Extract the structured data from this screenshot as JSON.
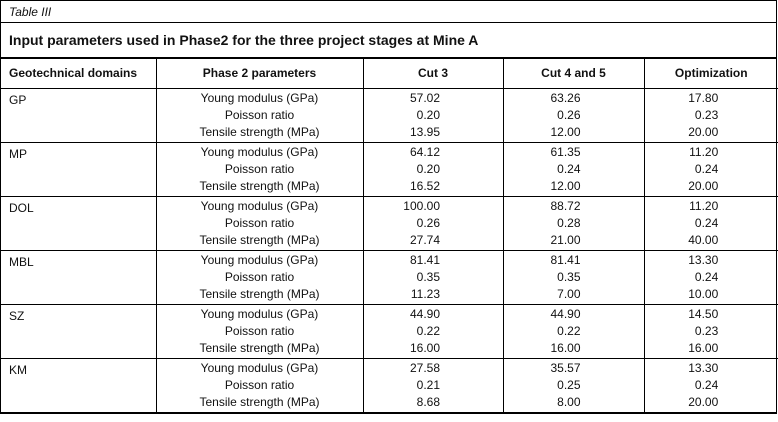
{
  "caption": "Table III",
  "title": "Input parameters used in Phase2 for the three project stages at Mine A",
  "colors": {
    "border": "#000000",
    "text": "#111111",
    "background": "#ffffff"
  },
  "table": {
    "columns": [
      "Geotechnical domains",
      "Phase 2 parameters",
      "Cut 3",
      "Cut 4 and 5",
      "Optimization"
    ],
    "rows": [
      {
        "domain": "GP",
        "parameters": [
          "Young modulus (GPa)",
          "Poisson ratio",
          "Tensile strength (MPa)"
        ],
        "cut3": [
          "57.02",
          "0.20",
          "13.95"
        ],
        "cut4and5": [
          "63.26",
          "0.26",
          "12.00"
        ],
        "optimization": [
          "17.80",
          "0.23",
          "20.00"
        ]
      },
      {
        "domain": "MP",
        "parameters": [
          "Young modulus (GPa)",
          "Poisson ratio",
          "Tensile strength (MPa)"
        ],
        "cut3": [
          "64.12",
          "0.20",
          "16.52"
        ],
        "cut4and5": [
          "61.35",
          "0.24",
          "12.00"
        ],
        "optimization": [
          "11.20",
          "0.24",
          "20.00"
        ]
      },
      {
        "domain": "DOL",
        "parameters": [
          "Young modulus (GPa)",
          "Poisson ratio",
          "Tensile strength (MPa)"
        ],
        "cut3": [
          "100.00",
          "0.26",
          "27.74"
        ],
        "cut4and5": [
          "88.72",
          "0.28",
          "21.00"
        ],
        "optimization": [
          "11.20",
          "0.24",
          "40.00"
        ]
      },
      {
        "domain": "MBL",
        "parameters": [
          "Young modulus (GPa)",
          "Poisson ratio",
          "Tensile strength (MPa)"
        ],
        "cut3": [
          "81.41",
          "0.35",
          "11.23"
        ],
        "cut4and5": [
          "81.41",
          "0.35",
          "7.00"
        ],
        "optimization": [
          "13.30",
          "0.24",
          "10.00"
        ]
      },
      {
        "domain": "SZ",
        "parameters": [
          "Young modulus (GPa)",
          "Poisson ratio",
          "Tensile strength (MPa)"
        ],
        "cut3": [
          "44.90",
          "0.22",
          "16.00"
        ],
        "cut4and5": [
          "44.90",
          "0.22",
          "16.00"
        ],
        "optimization": [
          "14.50",
          "0.23",
          "16.00"
        ]
      },
      {
        "domain": "KM",
        "parameters": [
          "Young modulus (GPa)",
          "Poisson ratio",
          "Tensile strength (MPa)"
        ],
        "cut3": [
          "27.58",
          "0.21",
          "8.68"
        ],
        "cut4and5": [
          "35.57",
          "0.25",
          "8.00"
        ],
        "optimization": [
          "13.30",
          "0.24",
          "20.00"
        ]
      }
    ]
  }
}
